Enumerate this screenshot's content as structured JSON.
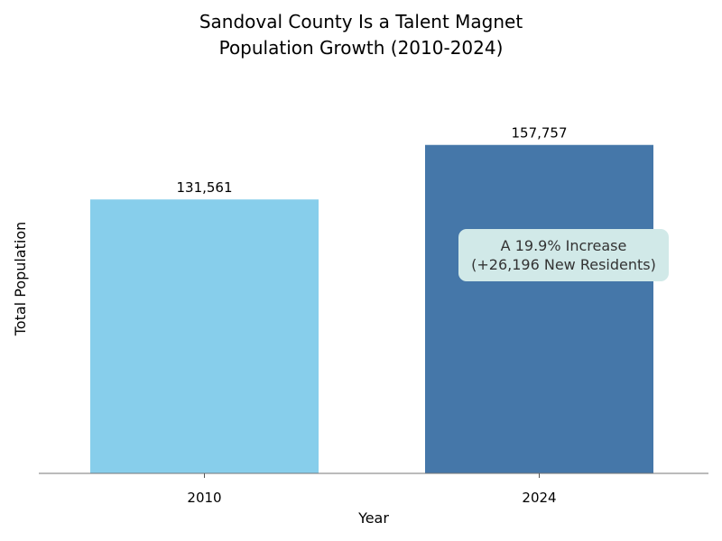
{
  "chart_data": {
    "type": "bar",
    "title": "Sandoval County Is a Talent Magnet",
    "subtitle": "Population Growth (2010-2024)",
    "xlabel": "Year",
    "ylabel": "Total Population",
    "categories": [
      "2010",
      "2024"
    ],
    "values": [
      131561,
      157757
    ],
    "data_labels": [
      "131,561",
      "157,757"
    ],
    "colors": [
      "#87ceeb",
      "#4577a9"
    ],
    "ylim": [
      0,
      165000
    ],
    "y_ticks_visible": false,
    "grid": false,
    "annotation": {
      "line1": "A 19.9% Increase",
      "line2": "(+26,196 New Residents)",
      "background": "#d1e9e8"
    }
  }
}
